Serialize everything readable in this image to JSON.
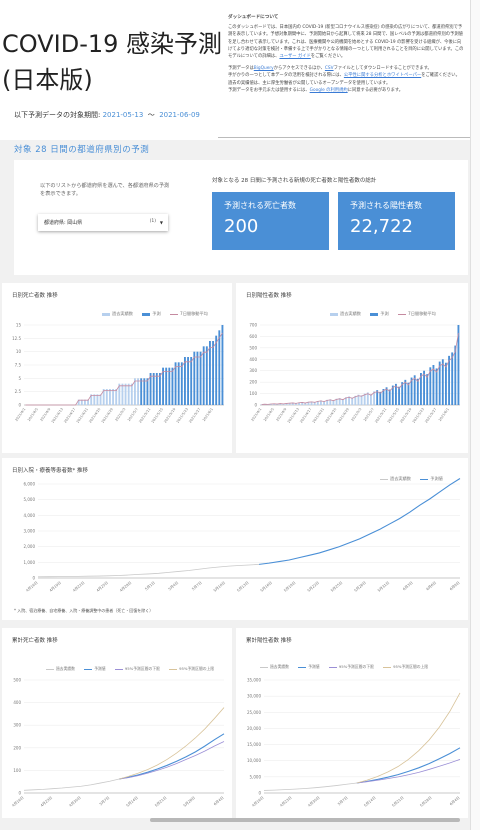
{
  "header": {
    "title_line1": "COVID-19 感染予測",
    "title_line2": "(日本版)",
    "period_label": "以下予測データの対象期間:",
    "period_start": "2021-05-13",
    "period_sep": "〜",
    "period_end": "2021-06-09"
  },
  "about": {
    "heading": "ダッシュボードについて",
    "p1": "このダッシュボードでは、日本国内の COVID-19 (新型コロナウイルス感染症) の感染の広がりについて、都道府県別で予測を表示しています。予想対象期間中に、予測開始日から起算して将来 28 日間で、国レベルの予測は都道府県別の予測値を足し合わせて表示しています。これは、医療機関や公的機関を始めとする COVID-19 の影響を受ける組織が、今後に向けてより適切な対策を検討・準備する上で手がかりとなる情報の一つとして利用されることを目的に公開しています。このモデルについての詳細は、",
    "p1_link": "ユーザー ガイド",
    "p1_tail": "をご覧ください。",
    "p2_a": "予測データは",
    "p2_link1": "BigQuery",
    "p2_b": "からアクセスできるほか、",
    "p2_link2": "CSV",
    "p2_c": "ファイルとしてダウンロードすることができます。",
    "p3_a": "手がかりの一つとして本データの活用を検討される際には、",
    "p3_link": "公平性に関する分析とホワイトペーパー",
    "p3_b": "をご確認ください。",
    "p4": "過去の実績値は、主に厚生労働省が公開しているオープンデータを使用しています。",
    "p5_a": "予測データをお手元または使用するには、",
    "p5_link": "Google の利用規約",
    "p5_b": "に同意する必要があります。"
  },
  "section_title": "対象 28 日間の都道府県別の予測",
  "selector": {
    "help": "以下のリストから都道府県を選んで、各都道府県の予測を表示できます。",
    "label": "都道府県: 岡山県",
    "count": "(1)",
    "arrow": "▼"
  },
  "kpis": {
    "heading": "対象となる 28 日間に予測される新規の死亡者数と陽性者数の総計",
    "deaths_label": "予測される死亡者数",
    "deaths_value": "200",
    "cases_label": "予測される陽性者数",
    "cases_value": "22,722"
  },
  "charts": {
    "daily_deaths": {
      "title": "日別死亡者数 推移",
      "legend": [
        "過去実績数",
        "予測",
        "7日間移動平均"
      ],
      "yticks": [
        "0",
        "2.5",
        "5",
        "7.5",
        "10",
        "12.5",
        "15"
      ]
    },
    "daily_cases": {
      "title": "日別陽性者数 推移",
      "legend": [
        "過去実績数",
        "予測",
        "7日間移動平均"
      ],
      "yticks": [
        "0",
        "100",
        "200",
        "300",
        "400",
        "500",
        "600",
        "700"
      ]
    },
    "hospitalized": {
      "title": "日別入院・療養等患者数* 推移",
      "legend": [
        "過去実績数",
        "予測値"
      ],
      "yticks": [
        "0",
        "1,000",
        "2,000",
        "3,000",
        "4,000",
        "5,000",
        "6,000"
      ],
      "xticks": [
        "4月16日",
        "4月19日",
        "4月22日",
        "4月25日",
        "4月28日",
        "5月1日",
        "5月4日",
        "5月7日",
        "5月10日",
        "5月13日",
        "5月16日",
        "5月19日",
        "5月22日",
        "5月25日",
        "5月28日",
        "5月31日",
        "6月3日",
        "6月6日",
        "6月9日"
      ],
      "footnote": "* 入院、宿泊療養、自宅療養、入院・療養調整中の患者（死亡・回復を除く）"
    },
    "cumulative_deaths": {
      "title": "累計死亡者数 推移",
      "legend": [
        "過去実績数",
        "予測値",
        "95%予測区間の下限",
        "95%予測区間の上限"
      ],
      "yticks": [
        "0",
        "100",
        "200",
        "300",
        "400",
        "500"
      ],
      "xticks": [
        "4月16日",
        "4月23日",
        "4月30日",
        "5月7日",
        "5月14日",
        "5月21日",
        "5月28日",
        "6月4日"
      ]
    },
    "cumulative_cases": {
      "title": "累計陽性者数 推移",
      "legend": [
        "過去実績数",
        "予測値",
        "95%予測区間の下限",
        "95%予測区間の上限"
      ],
      "yticks": [
        "0",
        "5,000",
        "10,000",
        "15,000",
        "20,000",
        "25,000",
        "30,000",
        "35,000"
      ],
      "xticks": [
        "4月16日",
        "4月23日",
        "4月30日",
        "5月7日",
        "5月14日",
        "5月21日",
        "5月28日",
        "6月4日"
      ]
    }
  },
  "chart_data": [
    {
      "type": "bar",
      "title": "日別死亡者数 推移",
      "series": [
        {
          "name": "予測",
          "values": [
            0,
            0,
            0,
            0,
            0,
            0,
            0,
            0,
            0,
            0,
            0,
            0,
            0,
            0,
            0,
            0,
            0,
            1,
            1,
            1,
            1,
            2,
            2,
            2,
            2,
            3,
            3,
            3,
            3,
            3,
            4,
            4,
            4,
            4,
            4,
            5,
            5,
            5,
            5,
            5,
            6,
            6,
            6,
            6,
            7,
            7,
            7,
            7,
            8,
            8,
            8,
            9,
            9,
            9,
            10,
            10,
            10,
            11,
            11,
            12,
            12,
            13,
            14,
            15
          ]
        }
      ],
      "ylim": [
        0,
        15
      ]
    },
    {
      "type": "bar",
      "title": "日別陽性者数 推移",
      "series": [
        {
          "name": "予測",
          "values": [
            5,
            8,
            6,
            10,
            12,
            9,
            14,
            11,
            15,
            18,
            20,
            16,
            22,
            25,
            19,
            28,
            30,
            26,
            35,
            40,
            33,
            45,
            50,
            42,
            55,
            60,
            52,
            68,
            75,
            65,
            80,
            90,
            85,
            100,
            110,
            95,
            120,
            130,
            115,
            140,
            155,
            135,
            170,
            185,
            160,
            200,
            220,
            195,
            240,
            260,
            230,
            280,
            300,
            270,
            330,
            350,
            320,
            380,
            400,
            370,
            430,
            460,
            520,
            700
          ]
        }
      ],
      "ylim": [
        0,
        700
      ]
    },
    {
      "type": "line",
      "title": "日別入院・療養等患者数* 推移",
      "series": [
        {
          "name": "過去実績数",
          "values": [
            80,
            85,
            90,
            95,
            105,
            115,
            125,
            140,
            160,
            190,
            230,
            260,
            300,
            360,
            420,
            480,
            560,
            640,
            700,
            760,
            800,
            830,
            870
          ]
        },
        {
          "name": "予測値",
          "values": [
            870,
            950,
            1050,
            1150,
            1300,
            1450,
            1600,
            1800,
            2000,
            2250,
            2500,
            2800,
            3100,
            3450,
            3800,
            4200,
            4650,
            5050,
            5500,
            5950,
            6350
          ]
        }
      ],
      "ylim": [
        0,
        6000
      ]
    },
    {
      "type": "line",
      "title": "累計死亡者数 推移",
      "series": [
        {
          "name": "過去実績数",
          "values": [
            12,
            14,
            16,
            19,
            22,
            26,
            30,
            36,
            44,
            52,
            62
          ]
        },
        {
          "name": "予測値",
          "values": [
            62,
            70,
            80,
            92,
            106,
            122,
            140,
            160,
            182,
            208,
            236,
            262
          ]
        },
        {
          "name": "95%予測区間の下限",
          "values": [
            62,
            68,
            77,
            88,
            100,
            114,
            130,
            148,
            166,
            186,
            208,
            228
          ]
        },
        {
          "name": "95%予測区間の上限",
          "values": [
            62,
            74,
            88,
            104,
            124,
            148,
            176,
            208,
            244,
            284,
            330,
            378
          ]
        }
      ],
      "ylim": [
        0,
        500
      ]
    },
    {
      "type": "line",
      "title": "累計陽性者数 推移",
      "series": [
        {
          "name": "過去実績数",
          "values": [
            800,
            900,
            1050,
            1200,
            1400,
            1650,
            1950,
            2300,
            2700,
            3100
          ]
        },
        {
          "name": "予測値",
          "values": [
            3100,
            3600,
            4200,
            4900,
            5700,
            6700,
            7800,
            9100,
            10600,
            12200,
            14000
          ]
        },
        {
          "name": "95%予測区間の下限",
          "values": [
            3100,
            3500,
            3950,
            4450,
            5000,
            5650,
            6400,
            7300,
            8300,
            9300,
            10400
          ]
        },
        {
          "name": "95%予測区間の上限",
          "values": [
            3100,
            4000,
            5100,
            6500,
            8200,
            10400,
            13100,
            16400,
            20400,
            25200,
            31000
          ]
        }
      ],
      "ylim": [
        0,
        35000
      ]
    }
  ],
  "colors": {
    "accent": "#4a8fd6",
    "bar_light": "#b7d0ee",
    "trend": "#c58aa0",
    "actual": "#c9c9c9",
    "lower": "#9b8fd6",
    "upper": "#d8c39a"
  }
}
